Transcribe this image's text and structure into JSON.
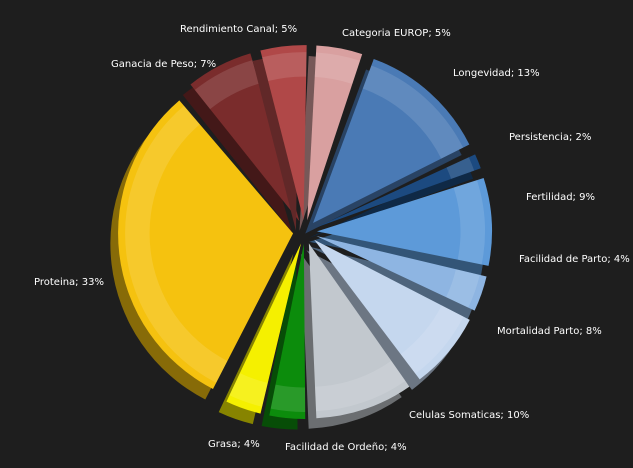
{
  "chart_data": {
    "type": "pie",
    "exploded": true,
    "style": "3d",
    "background": "#1e1e1e",
    "label_color": "#ffffff",
    "label_format": "{name}; {value}%",
    "slices": [
      {
        "name": "Categoria EUROP",
        "value": 5,
        "color": "#d9a0a0"
      },
      {
        "name": "Longevidad",
        "value": 13,
        "color": "#4a7ab5"
      },
      {
        "name": "Persistencia",
        "value": 2,
        "color": "#1c4a80"
      },
      {
        "name": "Fertilidad",
        "value": 9,
        "color": "#5d9ad9"
      },
      {
        "name": "Facilidad de Parto",
        "value": 4,
        "color": "#8eb5e2"
      },
      {
        "name": "Mortalidad Parto",
        "value": 8,
        "color": "#c5d7ee"
      },
      {
        "name": "Celulas Somaticas",
        "value": 10,
        "color": "#c2c8ce"
      },
      {
        "name": "Facilidad de Ordeño",
        "value": 4,
        "color": "#0c8c0c"
      },
      {
        "name": "Grasa",
        "value": 4,
        "color": "#f5f000"
      },
      {
        "name": "Proteina",
        "value": 33,
        "color": "#f5c20f"
      },
      {
        "name": "Ganacia de Peso",
        "value": 7,
        "color": "#7a2c2c"
      },
      {
        "name": "Rendimiento Canal",
        "value": 5,
        "color": "#b04848"
      }
    ]
  }
}
